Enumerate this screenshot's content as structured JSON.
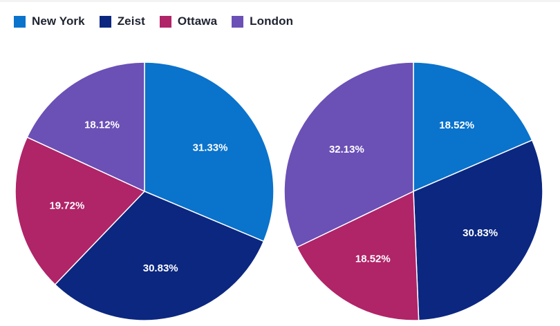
{
  "legend": [
    {
      "label": "New York",
      "color": "#0a73cc"
    },
    {
      "label": "Zeist",
      "color": "#0b2780"
    },
    {
      "label": "Ottawa",
      "color": "#b02468"
    },
    {
      "label": "London",
      "color": "#6b50b6"
    }
  ],
  "chart_data": [
    {
      "type": "pie",
      "categories": [
        "New York",
        "Zeist",
        "Ottawa",
        "London"
      ],
      "values": [
        31.33,
        30.83,
        19.72,
        18.12
      ],
      "labels": [
        "31.33%",
        "30.83%",
        "19.72%",
        "18.12%"
      ],
      "colors": [
        "#0a73cc",
        "#0b2780",
        "#b02468",
        "#6b50b6"
      ]
    },
    {
      "type": "pie",
      "categories": [
        "New York",
        "Zeist",
        "Ottawa",
        "London"
      ],
      "values": [
        18.52,
        30.83,
        18.52,
        32.13
      ],
      "labels": [
        "18.52%",
        "30.83%",
        "18.52%",
        "32.13%"
      ],
      "colors": [
        "#0a73cc",
        "#0b2780",
        "#b02468",
        "#6b50b6"
      ]
    }
  ]
}
